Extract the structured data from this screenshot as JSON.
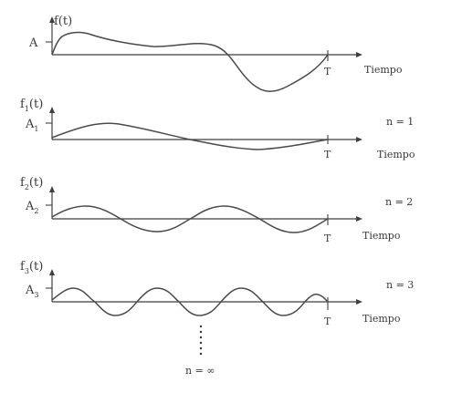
{
  "panels": [
    {
      "fn_label": "f(t)",
      "fn_sub": "",
      "fn_tail": "",
      "amp_label": "A",
      "amp_sub": "",
      "n_label": "",
      "period_label": "T",
      "time_label": "Tiempo"
    },
    {
      "fn_label": "f",
      "fn_sub": "1",
      "fn_tail": "(t)",
      "amp_label": "A",
      "amp_sub": "1",
      "n_label": "n = 1",
      "period_label": "T",
      "time_label": "Tiempo"
    },
    {
      "fn_label": "f",
      "fn_sub": "2",
      "fn_tail": "(t)",
      "amp_label": "A",
      "amp_sub": "2",
      "n_label": "n = 2",
      "period_label": "T",
      "time_label": "Tiempo"
    },
    {
      "fn_label": "f",
      "fn_sub": "3",
      "fn_tail": "(t)",
      "amp_label": "A",
      "amp_sub": "3",
      "n_label": "n = 3",
      "period_label": "T",
      "time_label": "Tiempo"
    }
  ],
  "footer": {
    "n_infinity_label": "n = ∞"
  }
}
